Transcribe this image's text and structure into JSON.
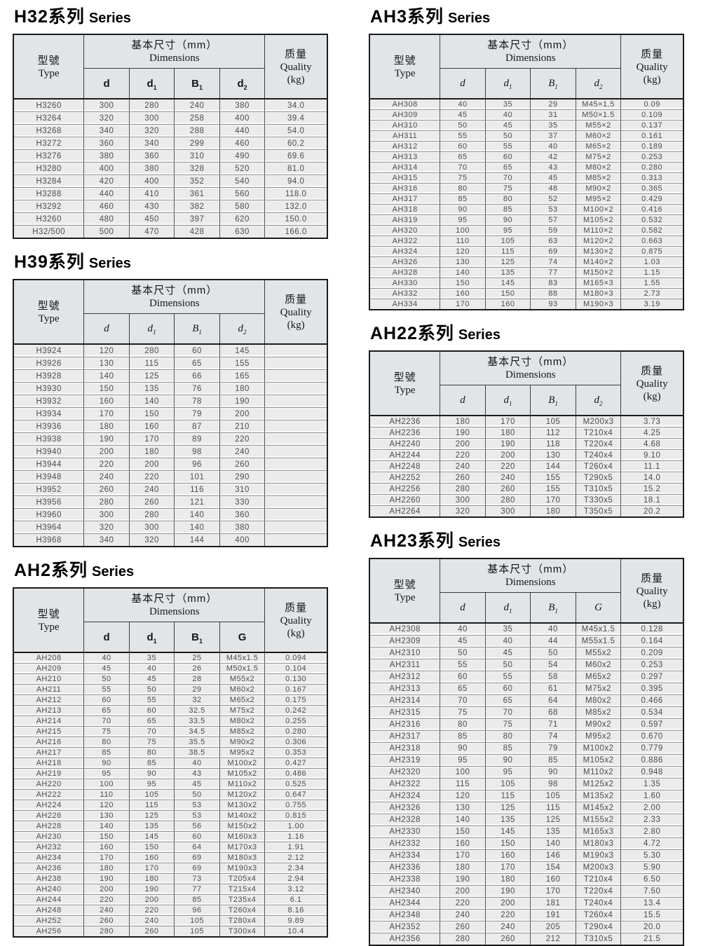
{
  "shared_headers": {
    "type": {
      "cn": "型號",
      "en": "Type"
    },
    "dims": {
      "cn": "基本尺寸（mm）",
      "en": "Dimensions"
    },
    "quality": {
      "cn": "质量",
      "en": "Quality",
      "unit": "(kg)"
    }
  },
  "tables": [
    {
      "id": "h32",
      "column": "left",
      "title_cn": "H32系列",
      "title_en": "Series",
      "col_style": "sans",
      "sub_columns": [
        {
          "base": "d",
          "sub": ""
        },
        {
          "base": "d",
          "sub": "1"
        },
        {
          "base": "B",
          "sub": "1"
        },
        {
          "base": "d",
          "sub": "2"
        }
      ],
      "rows": [
        [
          "H3260",
          "300",
          "280",
          "240",
          "380",
          "34.0"
        ],
        [
          "H3264",
          "320",
          "300",
          "258",
          "400",
          "39.4"
        ],
        [
          "H3268",
          "340",
          "320",
          "288",
          "440",
          "54.0"
        ],
        [
          "H3272",
          "360",
          "340",
          "299",
          "460",
          "60.2"
        ],
        [
          "H3276",
          "380",
          "360",
          "310",
          "490",
          "69.6"
        ],
        [
          "H3280",
          "400",
          "380",
          "328",
          "520",
          "81.0"
        ],
        [
          "H3284",
          "420",
          "400",
          "352",
          "540",
          "94.0"
        ],
        [
          "H3288",
          "440",
          "410",
          "361",
          "560",
          "118.0"
        ],
        [
          "H3292",
          "460",
          "430",
          "382",
          "580",
          "132.0"
        ],
        [
          "H3260",
          "480",
          "450",
          "397",
          "620",
          "150.0"
        ],
        [
          "H32/500",
          "500",
          "470",
          "428",
          "630",
          "166.0"
        ]
      ]
    },
    {
      "id": "h39",
      "column": "left",
      "title_cn": "H39系列",
      "title_en": "Series",
      "col_style": "italic",
      "sub_columns": [
        {
          "base": "d",
          "sub": ""
        },
        {
          "base": "d",
          "sub": "1"
        },
        {
          "base": "B",
          "sub": "1"
        },
        {
          "base": "d",
          "sub": "2"
        }
      ],
      "rows": [
        [
          "H3924",
          "120",
          "280",
          "60",
          "145",
          ""
        ],
        [
          "H3926",
          "130",
          "115",
          "65",
          "155",
          ""
        ],
        [
          "H3928",
          "140",
          "125",
          "66",
          "165",
          ""
        ],
        [
          "H3930",
          "150",
          "135",
          "76",
          "180",
          ""
        ],
        [
          "H3932",
          "160",
          "140",
          "78",
          "190",
          ""
        ],
        [
          "H3934",
          "170",
          "150",
          "79",
          "200",
          ""
        ],
        [
          "H3936",
          "180",
          "160",
          "87",
          "210",
          ""
        ],
        [
          "H3938",
          "190",
          "170",
          "89",
          "220",
          ""
        ],
        [
          "H3940",
          "200",
          "180",
          "98",
          "240",
          ""
        ],
        [
          "H3944",
          "220",
          "200",
          "96",
          "260",
          ""
        ],
        [
          "H3948",
          "240",
          "220",
          "101",
          "290",
          ""
        ],
        [
          "H3952",
          "260",
          "240",
          "116",
          "310",
          ""
        ],
        [
          "H3956",
          "280",
          "260",
          "121",
          "330",
          ""
        ],
        [
          "H3960",
          "300",
          "280",
          "140",
          "360",
          ""
        ],
        [
          "H3964",
          "320",
          "300",
          "140",
          "380",
          ""
        ],
        [
          "H3968",
          "340",
          "320",
          "144",
          "400",
          ""
        ]
      ]
    },
    {
      "id": "ah2",
      "column": "left",
      "title_cn": "AH2系列",
      "title_en": "Series",
      "col_style": "sans",
      "sub_columns": [
        {
          "base": "d",
          "sub": ""
        },
        {
          "base": "d",
          "sub": "1"
        },
        {
          "base": "B",
          "sub": "1"
        },
        {
          "base": "G",
          "sub": ""
        }
      ],
      "rows": [
        [
          "AH208",
          "40",
          "35",
          "25",
          "M45x1.5",
          "0.094"
        ],
        [
          "AH209",
          "45",
          "40",
          "26",
          "M50x1.5",
          "0.104"
        ],
        [
          "AH210",
          "50",
          "45",
          "28",
          "M55x2",
          "0.130"
        ],
        [
          "AH211",
          "55",
          "50",
          "29",
          "M60x2",
          "0.167"
        ],
        [
          "AH212",
          "60",
          "55",
          "32",
          "M65x2",
          "0.175"
        ],
        [
          "AH213",
          "65",
          "60",
          "32.5",
          "M75x2",
          "0.242"
        ],
        [
          "AH214",
          "70",
          "65",
          "33.5",
          "M80x2",
          "0.255"
        ],
        [
          "AH215",
          "75",
          "70",
          "34.5",
          "M85x2",
          "0.280"
        ],
        [
          "AH216",
          "80",
          "75",
          "35.5",
          "M90x2",
          "0.306"
        ],
        [
          "AH217",
          "85",
          "80",
          "38.5",
          "M95x2",
          "0.353"
        ],
        [
          "AH218",
          "90",
          "85",
          "40",
          "M100x2",
          "0.427"
        ],
        [
          "AH219",
          "95",
          "90",
          "43",
          "M105x2",
          "0.486"
        ],
        [
          "AH220",
          "100",
          "95",
          "45",
          "M110x2",
          "0.525"
        ],
        [
          "AH222",
          "110",
          "105",
          "50",
          "M120x2",
          "0.647"
        ],
        [
          "AH224",
          "120",
          "115",
          "53",
          "M130x2",
          "0.755"
        ],
        [
          "AH226",
          "130",
          "125",
          "53",
          "M140x2",
          "0.815"
        ],
        [
          "AH228",
          "140",
          "135",
          "56",
          "M150x2",
          "1.00"
        ],
        [
          "AH230",
          "150",
          "145",
          "60",
          "M160x3",
          "1.16"
        ],
        [
          "AH232",
          "160",
          "150",
          "64",
          "M170x3",
          "1.91"
        ],
        [
          "AH234",
          "170",
          "160",
          "69",
          "M180x3",
          "2.12"
        ],
        [
          "AH236",
          "180",
          "170",
          "69",
          "M190x3",
          "2.34"
        ],
        [
          "AH238",
          "190",
          "180",
          "73",
          "T205x4",
          "2.94"
        ],
        [
          "AH240",
          "200",
          "190",
          "77",
          "T215x4",
          "3.12"
        ],
        [
          "AH244",
          "220",
          "200",
          "85",
          "T235x4",
          "6.1"
        ],
        [
          "AH248",
          "240",
          "220",
          "96",
          "T260x4",
          "8.16"
        ],
        [
          "AH252",
          "260",
          "240",
          "105",
          "T280x4",
          "9.89"
        ],
        [
          "AH256",
          "280",
          "260",
          "105",
          "T300x4",
          "10.4"
        ]
      ]
    },
    {
      "id": "ah3",
      "column": "right",
      "title_cn": "AH3系列",
      "title_en": "Series",
      "col_style": "italic",
      "sub_columns": [
        {
          "base": "d",
          "sub": ""
        },
        {
          "base": "d",
          "sub": "1"
        },
        {
          "base": "B",
          "sub": "1"
        },
        {
          "base": "d",
          "sub": "2"
        }
      ],
      "rows": [
        [
          "AH308",
          "40",
          "35",
          "29",
          "M45×1.5",
          "0.09"
        ],
        [
          "AH309",
          "45",
          "40",
          "31",
          "M50×1.5",
          "0.109"
        ],
        [
          "AH310",
          "50",
          "45",
          "35",
          "M55×2",
          "0.137"
        ],
        [
          "AH311",
          "55",
          "50",
          "37",
          "M60×2",
          "0.161"
        ],
        [
          "AH312",
          "60",
          "55",
          "40",
          "M65×2",
          "0.189"
        ],
        [
          "AH313",
          "65",
          "60",
          "42",
          "M75×2",
          "0.253"
        ],
        [
          "AH314",
          "70",
          "65",
          "43",
          "M80×2",
          "0.280"
        ],
        [
          "AH315",
          "75",
          "70",
          "45",
          "M85×2",
          "0.313"
        ],
        [
          "AH316",
          "80",
          "75",
          "48",
          "M90×2",
          "0.365"
        ],
        [
          "AH317",
          "85",
          "80",
          "52",
          "M95×2",
          "0.429"
        ],
        [
          "AH318",
          "90",
          "85",
          "53",
          "M100×2",
          "0.416"
        ],
        [
          "AH319",
          "95",
          "90",
          "57",
          "M105×2",
          "0.532"
        ],
        [
          "AH320",
          "100",
          "95",
          "59",
          "M110×2",
          "0.582"
        ],
        [
          "AH322",
          "110",
          "105",
          "63",
          "M120×2",
          "0.663"
        ],
        [
          "AH324",
          "120",
          "115",
          "69",
          "M130×2",
          "0.875"
        ],
        [
          "AH326",
          "130",
          "125",
          "74",
          "M140×2",
          "1.03"
        ],
        [
          "AH328",
          "140",
          "135",
          "77",
          "M150×2",
          "1.15"
        ],
        [
          "AH330",
          "150",
          "145",
          "83",
          "M165×3",
          "1.55"
        ],
        [
          "AH332",
          "160",
          "150",
          "88",
          "M180×3",
          "2.73"
        ],
        [
          "AH334",
          "170",
          "160",
          "93",
          "M190×3",
          "3.19"
        ]
      ]
    },
    {
      "id": "ah22",
      "column": "right",
      "title_cn": "AH22系列",
      "title_en": "Series",
      "col_style": "italic",
      "sub_columns": [
        {
          "base": "d",
          "sub": ""
        },
        {
          "base": "d",
          "sub": "1"
        },
        {
          "base": "B",
          "sub": "1"
        },
        {
          "base": "d",
          "sub": "2"
        }
      ],
      "rows": [
        [
          "AH2236",
          "180",
          "170",
          "105",
          "M200x3",
          "3.73"
        ],
        [
          "AH2236",
          "190",
          "180",
          "112",
          "T210x4",
          "4.25"
        ],
        [
          "AH2240",
          "200",
          "190",
          "118",
          "T220x4",
          "4.68"
        ],
        [
          "AH2244",
          "220",
          "200",
          "130",
          "T240x4",
          "9.10"
        ],
        [
          "AH2248",
          "240",
          "220",
          "144",
          "T260x4",
          "11.1"
        ],
        [
          "AH2252",
          "260",
          "240",
          "155",
          "T290x5",
          "14.0"
        ],
        [
          "AH2256",
          "280",
          "260",
          "155",
          "T310x5",
          "15.2"
        ],
        [
          "AH2260",
          "300",
          "280",
          "170",
          "T330x5",
          "18.1"
        ],
        [
          "AH2264",
          "320",
          "300",
          "180",
          "T350x5",
          "20.2"
        ]
      ]
    },
    {
      "id": "ah23",
      "column": "right",
      "title_cn": "AH23系列",
      "title_en": "Series",
      "col_style": "italic",
      "sub_columns": [
        {
          "base": "d",
          "sub": ""
        },
        {
          "base": "d",
          "sub": "1"
        },
        {
          "base": "B",
          "sub": "1"
        },
        {
          "base": "G",
          "sub": ""
        }
      ],
      "rows": [
        [
          "AH2308",
          "40",
          "35",
          "40",
          "M45x1.5",
          "0.128"
        ],
        [
          "AH2309",
          "45",
          "40",
          "44",
          "M55x1.5",
          "0.164"
        ],
        [
          "AH2310",
          "50",
          "45",
          "50",
          "M55x2",
          "0.209"
        ],
        [
          "AH2311",
          "55",
          "50",
          "54",
          "M60x2",
          "0.253"
        ],
        [
          "AH2312",
          "60",
          "55",
          "58",
          "M65x2",
          "0.297"
        ],
        [
          "AH2313",
          "65",
          "60",
          "61",
          "M75x2",
          "0.395"
        ],
        [
          "AH2314",
          "70",
          "65",
          "64",
          "M80x2",
          "0.466"
        ],
        [
          "AH2315",
          "75",
          "70",
          "68",
          "M85x2",
          "0.534"
        ],
        [
          "AH2316",
          "80",
          "75",
          "71",
          "M90x2",
          "0.597"
        ],
        [
          "AH2317",
          "85",
          "80",
          "74",
          "M95x2",
          "0.670"
        ],
        [
          "AH2318",
          "90",
          "85",
          "79",
          "M100x2",
          "0.779"
        ],
        [
          "AH2319",
          "95",
          "90",
          "85",
          "M105x2",
          "0.886"
        ],
        [
          "AH2320",
          "100",
          "95",
          "90",
          "M110x2",
          "0.948"
        ],
        [
          "AH2322",
          "115",
          "105",
          "98",
          "M125x2",
          "1.35"
        ],
        [
          "AH2324",
          "120",
          "115",
          "105",
          "M135x2",
          "1.60"
        ],
        [
          "AH2326",
          "130",
          "125",
          "115",
          "M145x2",
          "2.00"
        ],
        [
          "AH2328",
          "140",
          "135",
          "125",
          "M155x2",
          "2.33"
        ],
        [
          "AH2330",
          "150",
          "145",
          "135",
          "M165x3",
          "2.80"
        ],
        [
          "AH2332",
          "160",
          "150",
          "140",
          "M180x3",
          "4.72"
        ],
        [
          "AH2334",
          "170",
          "160",
          "146",
          "M190x3",
          "5.30"
        ],
        [
          "AH2336",
          "180",
          "170",
          "154",
          "M200x3",
          "5.90"
        ],
        [
          "AH2338",
          "190",
          "180",
          "160",
          "T210x4",
          "6.50"
        ],
        [
          "AH2340",
          "200",
          "190",
          "170",
          "T220x4",
          "7.50"
        ],
        [
          "AH2344",
          "220",
          "200",
          "181",
          "T240x4",
          "13.4"
        ],
        [
          "AH2348",
          "240",
          "220",
          "191",
          "T260x4",
          "15.5"
        ],
        [
          "AH2352",
          "260",
          "240",
          "205",
          "T290x4",
          "20.0"
        ],
        [
          "AH2356",
          "280",
          "260",
          "212",
          "T310x5",
          "21.5"
        ]
      ]
    }
  ]
}
